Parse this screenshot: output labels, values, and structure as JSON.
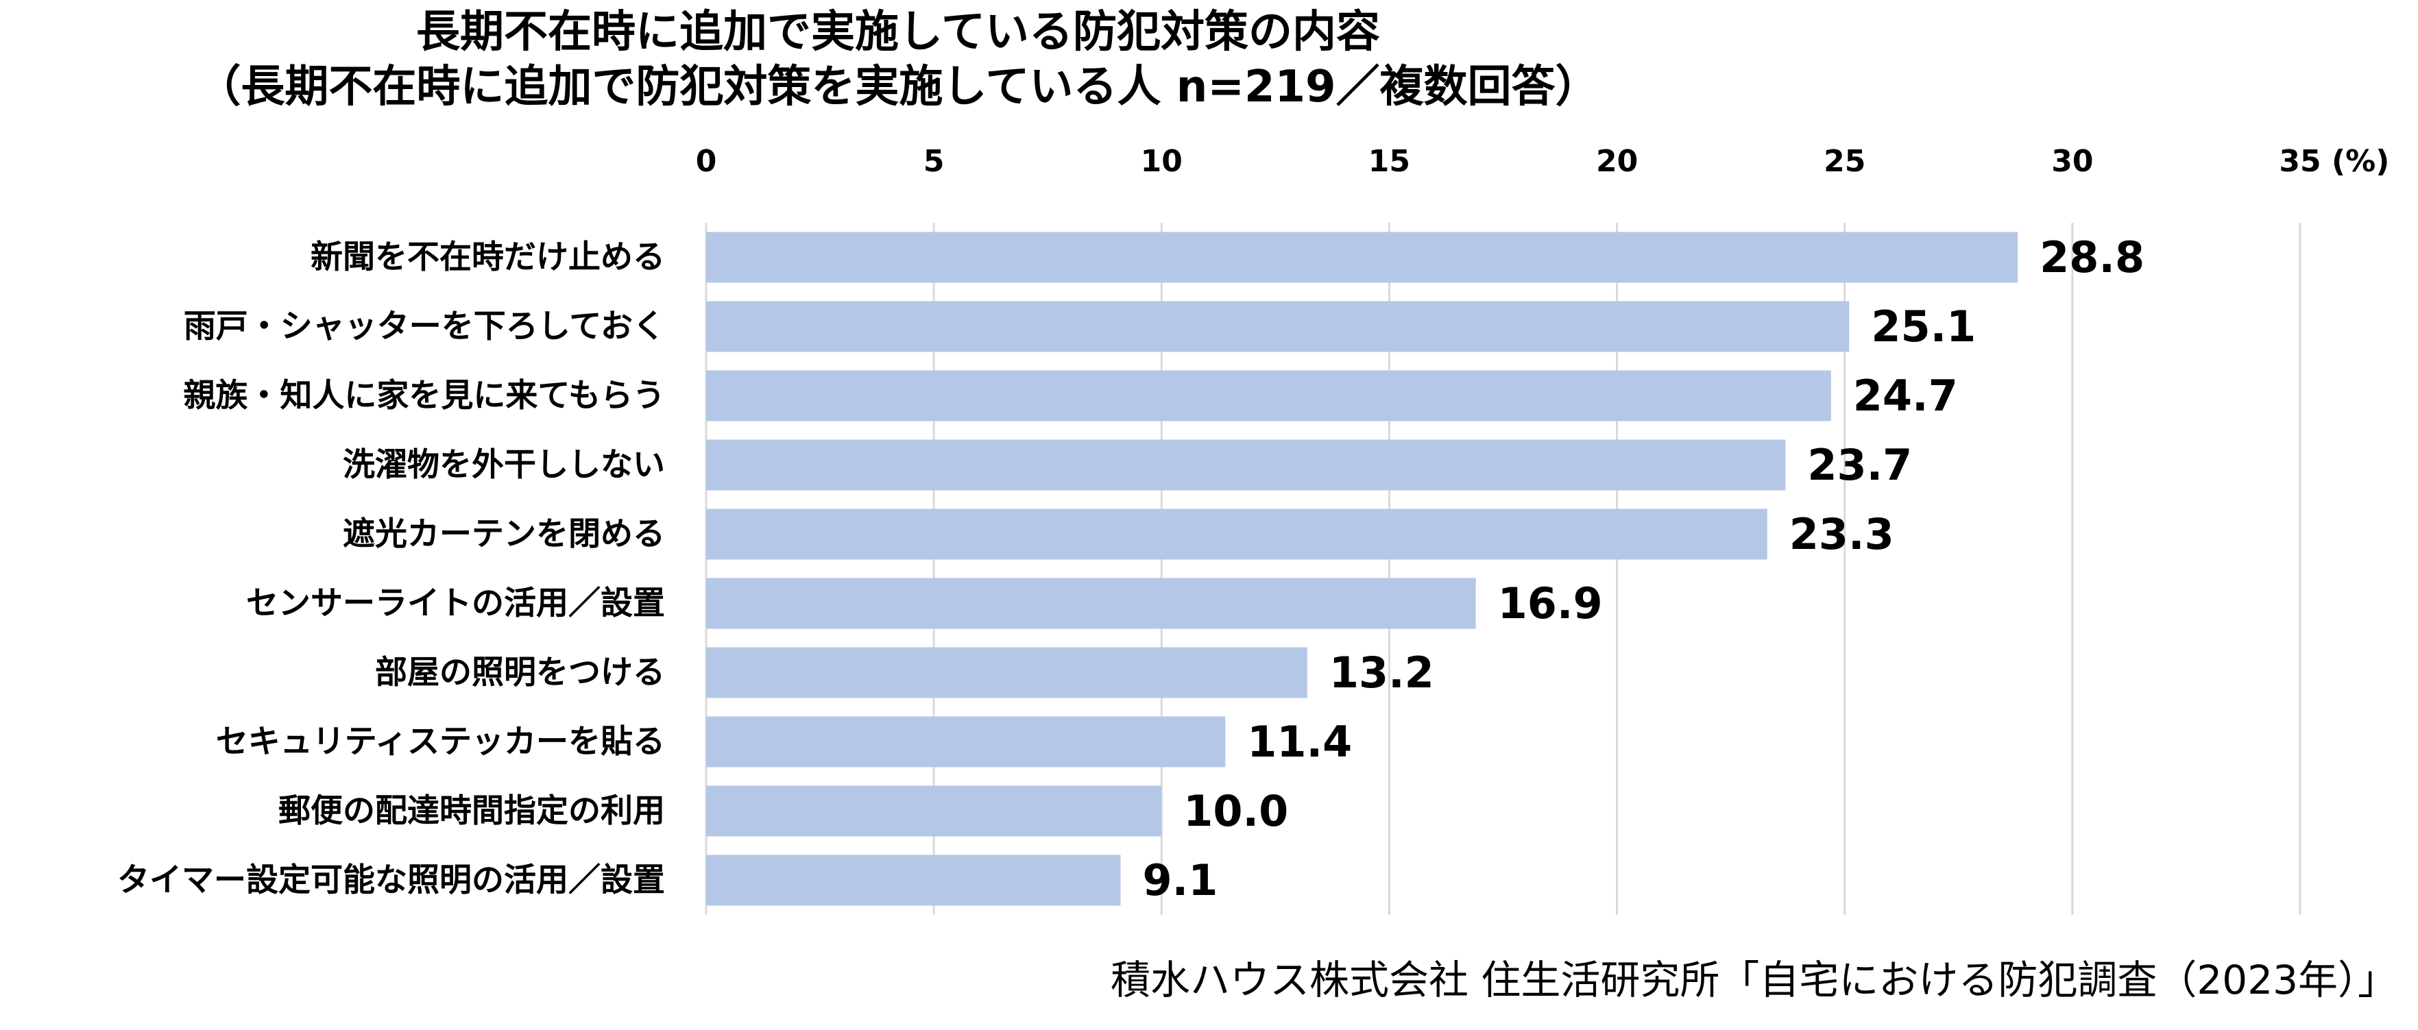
{
  "title_line1": "長期不在時に追加で実施している防犯対策の内容",
  "title_line2": "（長期不在時に追加で防犯対策を実施している人 n=219／複数回答）",
  "source": "積水ハウス株式会社 住生活研究所「自宅における防犯調査（2023年）」",
  "colors": {
    "bar": "#b4c7e7",
    "grid": "#d9d9d9",
    "text": "#000000"
  },
  "chart_data": {
    "type": "bar",
    "orientation": "horizontal",
    "categories": [
      "新聞を不在時だけ止める",
      "雨戸・シャッターを下ろしておく",
      "親族・知人に家を見に来てもらう",
      "洗濯物を外干ししない",
      "遮光カーテンを閉める",
      "センサーライトの活用／設置",
      "部屋の照明をつける",
      "セキュリティステッカーを貼る",
      "郵便の配達時間指定の利用",
      "タイマー設定可能な照明の活用／設置"
    ],
    "values": [
      28.8,
      25.1,
      24.7,
      23.7,
      23.3,
      16.9,
      13.2,
      11.4,
      10.0,
      9.1
    ],
    "data_labels": [
      "28.8",
      "25.1",
      "24.7",
      "23.7",
      "23.3",
      "16.9",
      "13.2",
      "11.4",
      "10.0",
      "9.1"
    ],
    "xlim": [
      0,
      35
    ],
    "x_ticks": [
      0,
      5,
      10,
      15,
      20,
      25,
      30,
      35
    ],
    "x_tick_labels": [
      "0",
      "5",
      "10",
      "15",
      "20",
      "25",
      "30",
      "35"
    ],
    "unit_label": "(%)",
    "axis_position": "top",
    "grid": true
  }
}
